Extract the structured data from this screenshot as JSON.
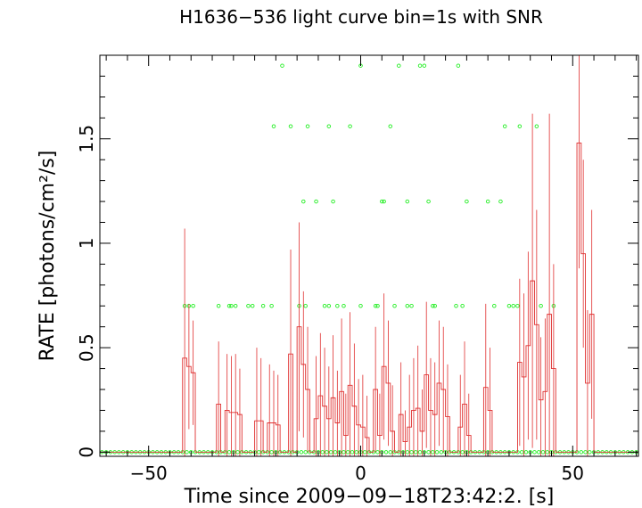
{
  "chart_data": {
    "type": "line",
    "title": "H1636−536 light curve bin=1s with SNR",
    "xlabel": "Time since 2009−09−18T23:42:2. [s]",
    "ylabel": "RATE [photons/cm²/s]",
    "xlim": [
      -61.5,
      65.5
    ],
    "ylim": [
      -0.02,
      1.9
    ],
    "x_ticks": [
      {
        "value": -50,
        "label": "−50"
      },
      {
        "value": 0,
        "label": "0"
      },
      {
        "value": 50,
        "label": "50"
      }
    ],
    "y_ticks": [
      {
        "value": 0,
        "label": "0"
      },
      {
        "value": 0.5,
        "label": "0.5"
      },
      {
        "value": 1,
        "label": "1"
      },
      {
        "value": 1.5,
        "label": "1.5"
      }
    ],
    "grid": false,
    "legend": "none",
    "colors": {
      "rate": "#e03030",
      "snr": "#22ee22",
      "axes": "#000000"
    },
    "series": [
      {
        "role": "rate-step",
        "style": "step-with-errorbars",
        "color": "#e03030",
        "x_start": -42,
        "bin_width": 1,
        "values": [
          0.45,
          0.41,
          0.38,
          0.0,
          0.0,
          0.0,
          0.0,
          0.0,
          0.23,
          0.0,
          0.2,
          0.19,
          0.19,
          0.18,
          0.0,
          0.0,
          0.0,
          0.15,
          0.15,
          0.0,
          0.14,
          0.14,
          0.13,
          0.0,
          0.0,
          0.47,
          0.0,
          0.6,
          0.42,
          0.3,
          0.0,
          0.16,
          0.27,
          0.22,
          0.16,
          0.26,
          0.14,
          0.29,
          0.08,
          0.32,
          0.22,
          0.13,
          0.12,
          0.07,
          0.0,
          0.3,
          0.08,
          0.41,
          0.33,
          0.1,
          0.0,
          0.18,
          0.05,
          0.12,
          0.2,
          0.21,
          0.1,
          0.37,
          0.2,
          0.18,
          0.33,
          0.3,
          0.17,
          0.0,
          0.0,
          0.12,
          0.23,
          0.08,
          0.0,
          0.0,
          0.0,
          0.31,
          0.2,
          0.0,
          0.0,
          0.0,
          0.0,
          0.0,
          0.0,
          0.43,
          0.36,
          0.51,
          0.82,
          0.61,
          0.25,
          0.29,
          0.66,
          0.4,
          0.0,
          0.0,
          0.0,
          0.0,
          0.0,
          1.48,
          0.95,
          0.33,
          0.66,
          0.0,
          0.0,
          0.0
        ],
        "errors": [
          0.62,
          0.3,
          0.25,
          0,
          0,
          0,
          0,
          0,
          0.3,
          0,
          0.27,
          0.27,
          0.28,
          0.22,
          0,
          0,
          0,
          0.35,
          0.3,
          0,
          0.28,
          0.25,
          0.24,
          0,
          0,
          0.5,
          0,
          0.5,
          0.35,
          0.3,
          0,
          0.3,
          0.3,
          0.28,
          0.25,
          0.3,
          0.25,
          0.35,
          0.2,
          0.35,
          0.3,
          0.22,
          0.25,
          0.2,
          0,
          0.3,
          0.2,
          0.35,
          0.3,
          0.22,
          0,
          0.25,
          0.15,
          0.25,
          0.25,
          0.3,
          0.2,
          0.35,
          0.25,
          0.25,
          0.3,
          0.3,
          0.25,
          0,
          0,
          0.25,
          0.3,
          0.2,
          0,
          0,
          0,
          0.4,
          0.3,
          0,
          0,
          0,
          0,
          0,
          0,
          0.4,
          0.4,
          0.45,
          0.8,
          0.55,
          0.3,
          0.35,
          0.96,
          0.5,
          0,
          0,
          0,
          0,
          0,
          0.6,
          0.45,
          0.35,
          0.5,
          0,
          0,
          0
        ]
      },
      {
        "role": "snr-points",
        "style": "scatter-open-circles",
        "color": "#22ee22",
        "baseline_value": 0.0,
        "baseline_x_range": [
          -61,
          65
        ],
        "points": [
          [
            -18.5,
            1.85
          ],
          [
            0,
            1.85
          ],
          [
            9,
            1.85
          ],
          [
            14,
            1.85
          ],
          [
            15,
            1.85
          ],
          [
            23,
            1.85
          ],
          [
            -20.5,
            1.56
          ],
          [
            -16.5,
            1.56
          ],
          [
            -12.5,
            1.56
          ],
          [
            -7.5,
            1.56
          ],
          [
            -2.5,
            1.56
          ],
          [
            7,
            1.56
          ],
          [
            34,
            1.56
          ],
          [
            37.5,
            1.56
          ],
          [
            41.5,
            1.56
          ],
          [
            -13.5,
            1.2
          ],
          [
            -10.5,
            1.2
          ],
          [
            -6.5,
            1.2
          ],
          [
            5,
            1.2
          ],
          [
            5.5,
            1.2
          ],
          [
            11,
            1.2
          ],
          [
            16,
            1.2
          ],
          [
            25,
            1.2
          ],
          [
            30,
            1.2
          ],
          [
            33,
            1.2
          ],
          [
            -41.5,
            0.7
          ],
          [
            -40.5,
            0.7
          ],
          [
            -39.5,
            0.7
          ],
          [
            -33.5,
            0.7
          ],
          [
            -31,
            0.7
          ],
          [
            -30.5,
            0.7
          ],
          [
            -29.5,
            0.7
          ],
          [
            -26.5,
            0.7
          ],
          [
            -25.5,
            0.7
          ],
          [
            -23,
            0.7
          ],
          [
            -21,
            0.7
          ],
          [
            -14.5,
            0.7
          ],
          [
            -13,
            0.7
          ],
          [
            -8.5,
            0.7
          ],
          [
            -7.5,
            0.7
          ],
          [
            -5.5,
            0.7
          ],
          [
            -4,
            0.7
          ],
          [
            0,
            0.7
          ],
          [
            3.5,
            0.7
          ],
          [
            4,
            0.7
          ],
          [
            8,
            0.7
          ],
          [
            11,
            0.7
          ],
          [
            12,
            0.7
          ],
          [
            17,
            0.7
          ],
          [
            17.5,
            0.7
          ],
          [
            22.5,
            0.7
          ],
          [
            24,
            0.7
          ],
          [
            31.5,
            0.7
          ],
          [
            35,
            0.7
          ],
          [
            36,
            0.7
          ],
          [
            37,
            0.7
          ],
          [
            42.5,
            0.7
          ],
          [
            45.5,
            0.7
          ]
        ]
      }
    ]
  }
}
